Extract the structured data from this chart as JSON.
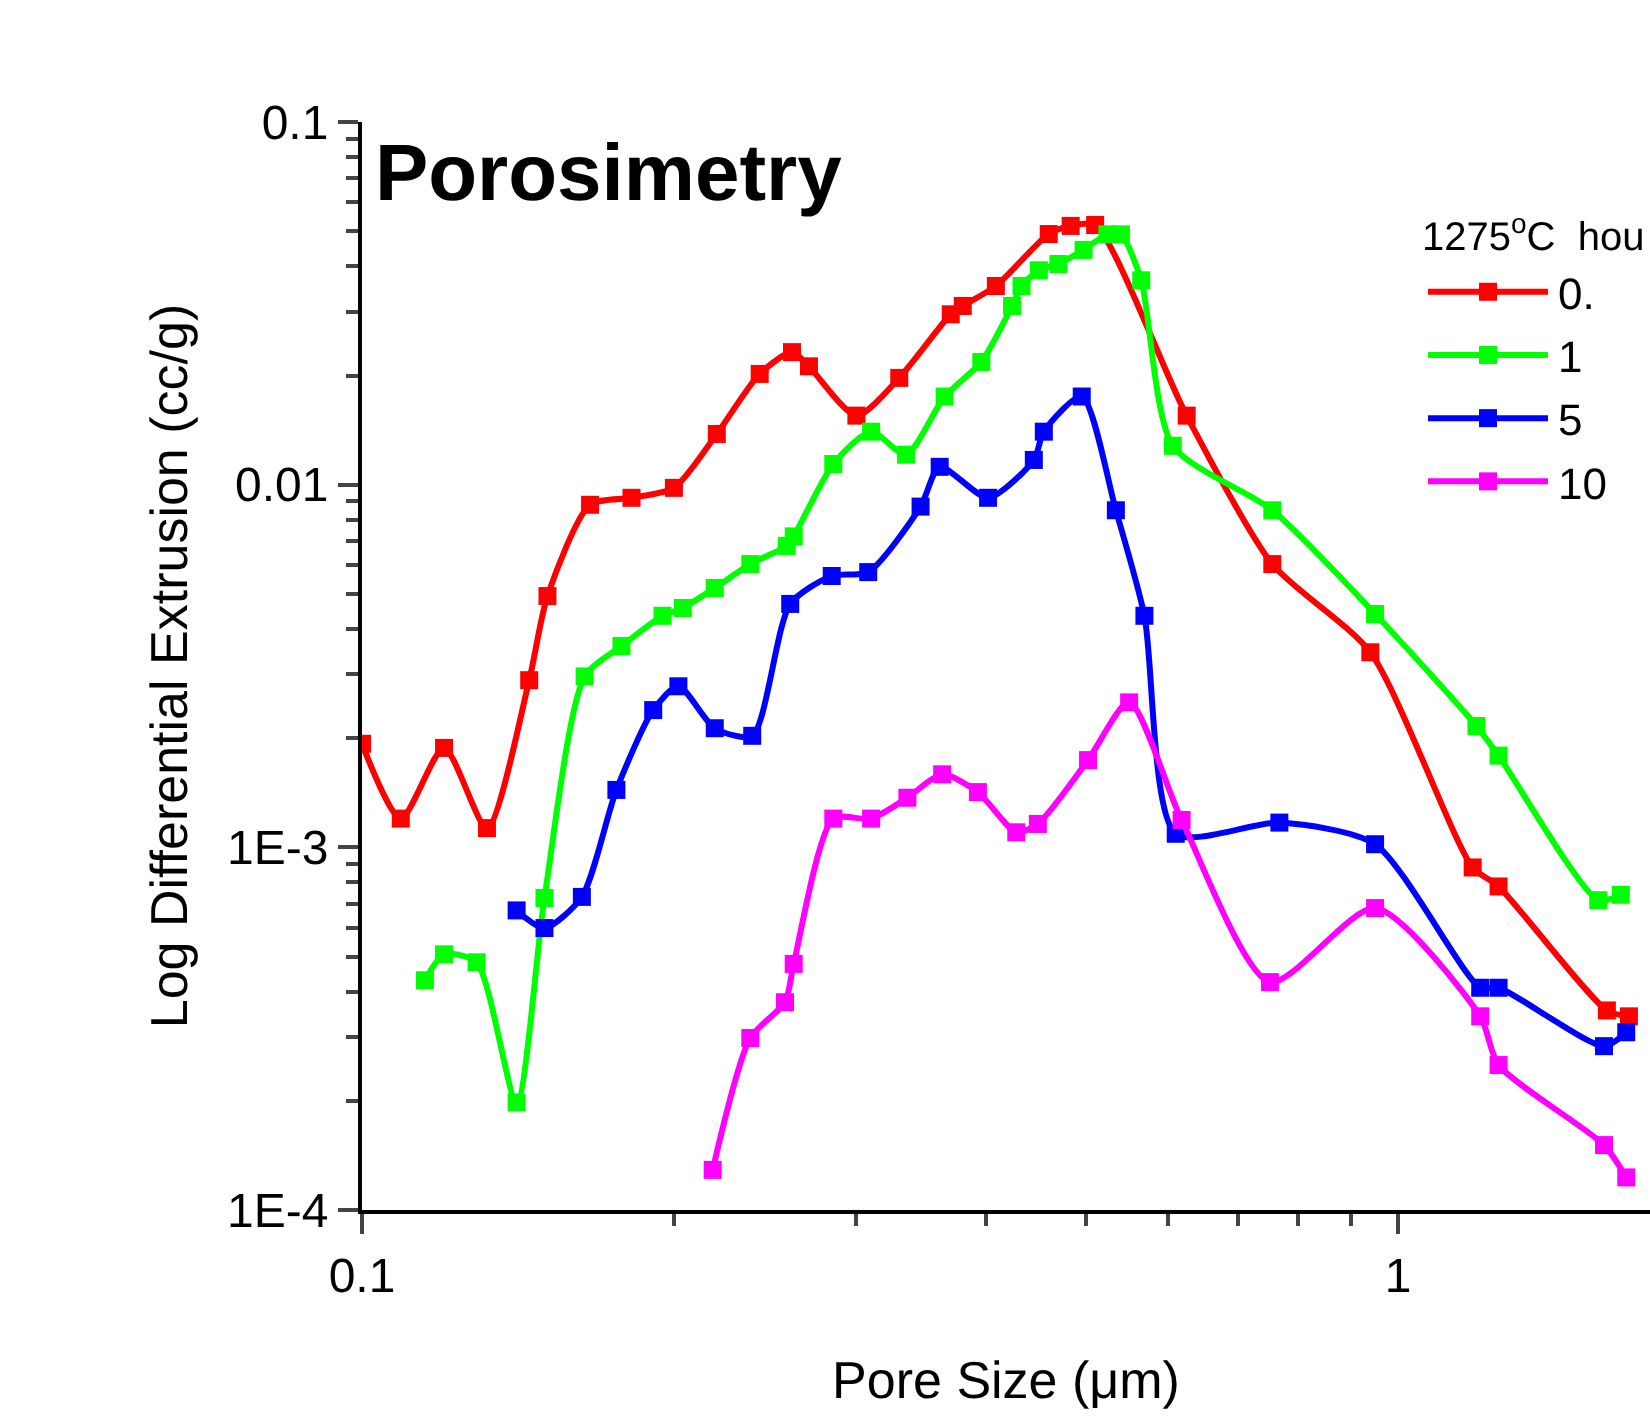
{
  "chart_data": {
    "type": "line",
    "title": "Porosimetry",
    "xlabel": "Pore Size (μm)",
    "ylabel": "Log Differential Extrusion (cc/g)",
    "legend_title": "1275$^{o}$C  hou",
    "log": "xy",
    "xlim": [
      0.1,
      1.75
    ],
    "xticks": [
      0.1,
      1
    ],
    "ylim": [
      0.0001,
      0.1
    ],
    "yticks": [
      {
        "value": 0.0001,
        "label": "1E-4"
      },
      {
        "value": 0.001,
        "label": "1E-3"
      },
      0.01,
      0.1
    ],
    "legend": "top right",
    "marker": "square",
    "line_style": "solid",
    "series": [
      {
        "name": "0.",
        "color": "#ff0000",
        "x": [
          0.1,
          0.109,
          0.12,
          0.132,
          0.145,
          0.151,
          0.166,
          0.182,
          0.2,
          0.22,
          0.242,
          0.26,
          0.27,
          0.3,
          0.33,
          0.37,
          0.38,
          0.409,
          0.46,
          0.483,
          0.51,
          0.625,
          0.756,
          0.94,
          1.18,
          1.25,
          1.59,
          1.67
        ],
        "values": [
          0.00193,
          0.0012,
          0.00188,
          0.00113,
          0.00289,
          0.00493,
          0.0088,
          0.0092,
          0.0098,
          0.0138,
          0.0202,
          0.0232,
          0.0212,
          0.0155,
          0.0197,
          0.0295,
          0.0311,
          0.0353,
          0.0491,
          0.0517,
          0.052,
          0.0155,
          0.00604,
          0.00345,
          0.00088,
          0.00078,
          0.000355,
          0.000342
        ]
      },
      {
        "name": "1",
        "color": "#00ff00",
        "x": [
          0.115,
          0.12,
          0.129,
          0.141,
          0.15,
          0.164,
          0.178,
          0.195,
          0.204,
          0.219,
          0.237,
          0.257,
          0.261,
          0.285,
          0.31,
          0.335,
          0.365,
          0.396,
          0.424,
          0.433,
          0.45,
          0.47,
          0.497,
          0.524,
          0.54,
          0.565,
          0.606,
          0.756,
          0.95,
          1.19,
          1.25,
          1.56,
          1.64
        ],
        "values": [
          0.00043,
          0.000507,
          0.000482,
          0.000198,
          0.000725,
          0.00296,
          0.00359,
          0.00435,
          0.00457,
          0.00519,
          0.00604,
          0.00678,
          0.0072,
          0.0114,
          0.014,
          0.0121,
          0.0175,
          0.0218,
          0.0311,
          0.0353,
          0.039,
          0.0406,
          0.0444,
          0.049,
          0.049,
          0.0366,
          0.0128,
          0.0085,
          0.0044,
          0.00216,
          0.00179,
          0.000715,
          0.00074
        ]
      },
      {
        "name": "5",
        "color": "#0000ff",
        "x": [
          0.141,
          0.15,
          0.163,
          0.176,
          0.191,
          0.202,
          0.219,
          0.238,
          0.259,
          0.284,
          0.308,
          0.346,
          0.361,
          0.402,
          0.445,
          0.455,
          0.495,
          0.534,
          0.569,
          0.61,
          0.768,
          0.95,
          1.2,
          1.25,
          1.58,
          1.66
        ],
        "values": [
          0.00067,
          0.000599,
          0.00073,
          0.00144,
          0.00239,
          0.00278,
          0.00213,
          0.00203,
          0.00469,
          0.0056,
          0.00574,
          0.0087,
          0.0112,
          0.0092,
          0.0117,
          0.014,
          0.0175,
          0.0085,
          0.00435,
          0.00109,
          0.00117,
          0.00102,
          0.00041,
          0.00041,
          0.000283,
          0.000309
        ]
      },
      {
        "name": "10",
        "color": "#ff00ff",
        "x": [
          0.218,
          0.237,
          0.256,
          0.261,
          0.285,
          0.31,
          0.336,
          0.363,
          0.393,
          0.428,
          0.449,
          0.502,
          0.55,
          0.618,
          0.752,
          0.95,
          1.2,
          1.25,
          1.58,
          1.66
        ],
        "values": [
          0.000129,
          0.000298,
          0.000374,
          0.000477,
          0.0012,
          0.0012,
          0.00137,
          0.00159,
          0.00142,
          0.0011,
          0.00116,
          0.00174,
          0.00251,
          0.00119,
          0.000425,
          0.00068,
          0.000342,
          0.000251,
          0.000151,
          0.000123
        ]
      }
    ]
  }
}
